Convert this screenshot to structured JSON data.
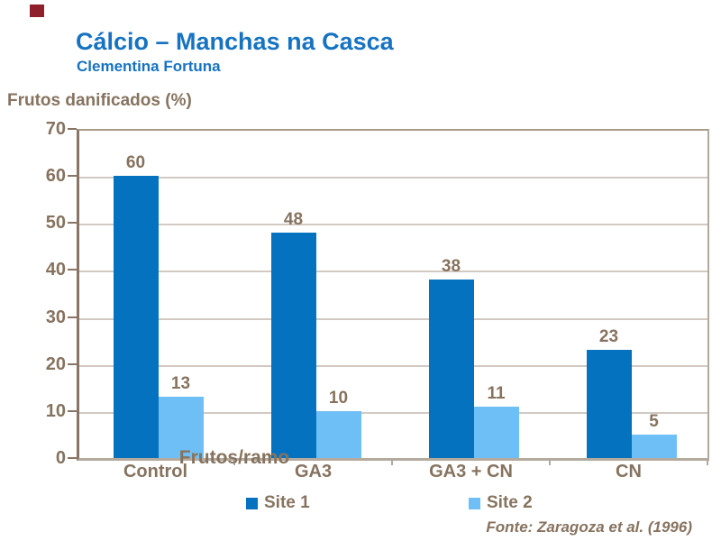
{
  "slide": {
    "title": "Cálcio – Manchas na Casca",
    "subtitle": "Clementina Fortuna",
    "source": "Fonte: Zaragoza et al. (1996)"
  },
  "colors": {
    "title_blue": "#1673C2",
    "text_brown": "#86735f",
    "axis_dark_brown": "#8a7565",
    "frame_tan": "#b3a89c",
    "gridline": "#d2cac2",
    "decoration_red": "#8E1F2B",
    "series1_blue": "#0572C0",
    "series2_light_blue": "#6FBFF7"
  },
  "chart_data": {
    "type": "bar",
    "title": "Cálcio – Manchas na Casca",
    "ylabel": "Frutos danificados (%)",
    "xlabel": "Frutos/ramo",
    "categories": [
      "Control",
      "GA3",
      "GA3 + CN",
      "CN"
    ],
    "series": [
      {
        "name": "Site 1",
        "color": "#0572C0",
        "values": [
          60,
          48,
          38,
          23
        ]
      },
      {
        "name": "Site 2",
        "color": "#6FBFF7",
        "values": [
          13,
          10,
          11,
          5
        ]
      }
    ],
    "ylim": [
      0,
      70
    ],
    "ytick_step": 10,
    "grid": true,
    "data_labels": true,
    "legend_position": "bottom"
  }
}
